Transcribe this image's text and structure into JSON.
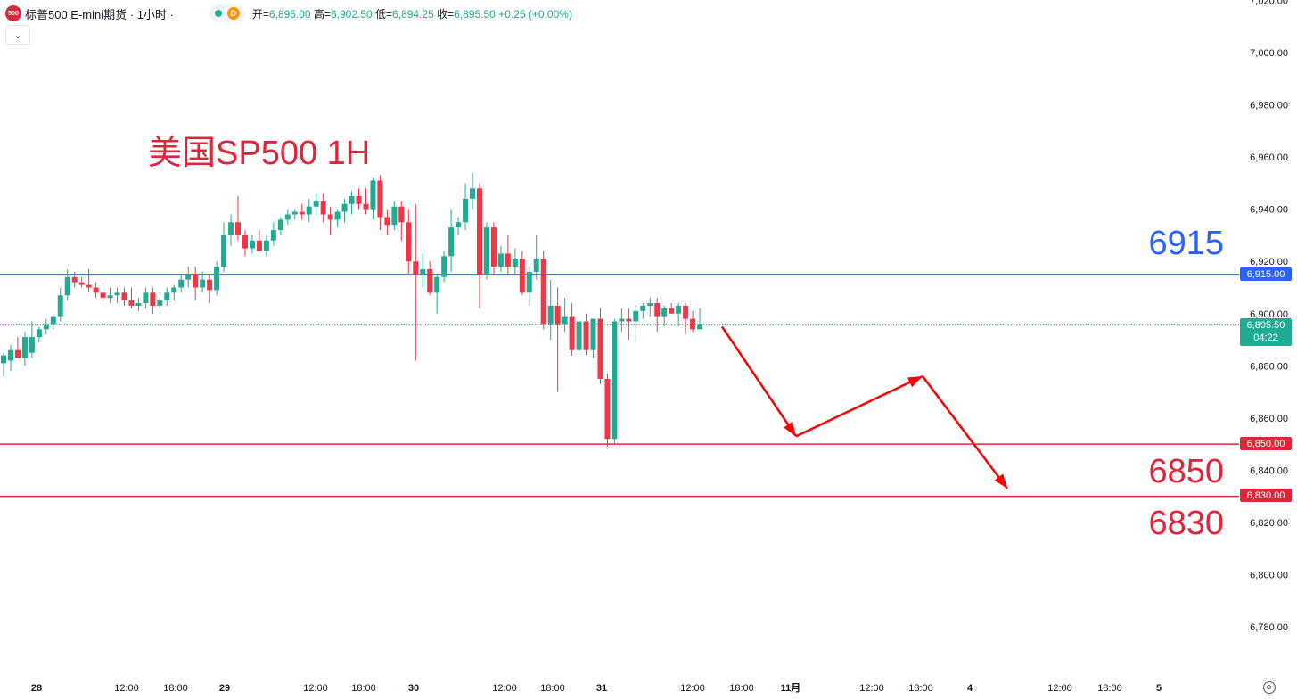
{
  "header": {
    "logo_text": "500",
    "symbol": "标普500 E-mini期货 · 1小时 ·",
    "badge": "D",
    "open_label": "开=",
    "open": "6,895.00",
    "high_label": "高=",
    "high": "6,902.50",
    "low_label": "低=",
    "low": "6,894.25",
    "close_label": "收=",
    "close": "6,895.50",
    "change": "+0.25 (+0.00%)",
    "collapse_icon": "chevron-down-icon"
  },
  "overlay": {
    "title": "美国SP500 1H",
    "label_6915": "6915",
    "label_6850": "6850",
    "label_6830": "6830"
  },
  "price_axis": {
    "ticks": [
      "7,020.00",
      "7,000.00",
      "6,980.00",
      "6,960.00",
      "6,940.00",
      "6,920.00",
      "6,900.00",
      "6,880.00",
      "6,860.00",
      "6,840.00",
      "6,820.00",
      "6,800.00",
      "6,780.00"
    ],
    "tag_6915": "6,915.00",
    "tag_6850": "6,850.00",
    "tag_6830": "6,830.00",
    "last_price": "6,895.50",
    "countdown": "04:22"
  },
  "time_axis": [
    "28",
    "12:00",
    "18:00",
    "29",
    "12:00",
    "18:00",
    "30",
    "12:00",
    "18:00",
    "31",
    "12:00",
    "18:00",
    "11月",
    "12:00",
    "18:00",
    "4",
    "12:00",
    "18:00",
    "5"
  ],
  "colors": {
    "up": "#22ab94",
    "down": "#f23645",
    "level_blue": "#2962ff",
    "level_red": "#e0253a",
    "arrow": "#ff0000"
  },
  "chart_data": {
    "type": "candlestick",
    "title": "美国SP500 1H",
    "ylim": [
      6770,
      7022
    ],
    "xlabels": [
      "28",
      "12:00",
      "18:00",
      "29",
      "12:00",
      "18:00",
      "30",
      "12:00",
      "18:00",
      "31",
      "12:00",
      "18:00",
      "11月",
      "12:00",
      "18:00",
      "4",
      "12:00",
      "18:00",
      "5"
    ],
    "candles": [
      [
        6881,
        6885,
        6876,
        6884
      ],
      [
        6882,
        6888,
        6878,
        6886
      ],
      [
        6886,
        6891,
        6883,
        6883
      ],
      [
        6883,
        6893,
        6880,
        6891
      ],
      [
        6885,
        6897,
        6883,
        6891
      ],
      [
        6891,
        6895,
        6889,
        6894
      ],
      [
        6894,
        6898,
        6892,
        6896
      ],
      [
        6896,
        6900,
        6894,
        6899
      ],
      [
        6899,
        6910,
        6897,
        6907
      ],
      [
        6907,
        6917,
        6905,
        6914
      ],
      [
        6914,
        6916,
        6910,
        6912
      ],
      [
        6912,
        6914,
        6910,
        6911
      ],
      [
        6911,
        6917,
        6908,
        6910
      ],
      [
        6910,
        6912,
        6906,
        6908
      ],
      [
        6908,
        6912,
        6905,
        6906
      ],
      [
        6906,
        6910,
        6904,
        6907
      ],
      [
        6907,
        6910,
        6904,
        6908
      ],
      [
        6908,
        6910,
        6903,
        6905
      ],
      [
        6905,
        6910,
        6902,
        6903
      ],
      [
        6903,
        6906,
        6901,
        6904
      ],
      [
        6904,
        6910,
        6902,
        6908
      ],
      [
        6908,
        6910,
        6900,
        6903
      ],
      [
        6903,
        6906,
        6902,
        6905
      ],
      [
        6905,
        6910,
        6903,
        6908
      ],
      [
        6908,
        6911,
        6905,
        6910
      ],
      [
        6910,
        6915,
        6908,
        6913
      ],
      [
        6913,
        6918,
        6910,
        6915
      ],
      [
        6915,
        6918,
        6905,
        6910
      ],
      [
        6910,
        6916,
        6908,
        6913
      ],
      [
        6913,
        6915,
        6904,
        6909
      ],
      [
        6909,
        6920,
        6907,
        6918
      ],
      [
        6918,
        6935,
        6916,
        6930
      ],
      [
        6930,
        6938,
        6926,
        6935
      ],
      [
        6935,
        6945,
        6928,
        6930
      ],
      [
        6930,
        6932,
        6922,
        6925
      ],
      [
        6925,
        6930,
        6923,
        6928
      ],
      [
        6928,
        6932,
        6925,
        6924
      ],
      [
        6924,
        6930,
        6922,
        6928
      ],
      [
        6928,
        6935,
        6926,
        6932
      ],
      [
        6932,
        6937,
        6930,
        6936
      ],
      [
        6936,
        6940,
        6934,
        6938
      ],
      [
        6938,
        6940,
        6936,
        6939
      ],
      [
        6939,
        6942,
        6936,
        6938
      ],
      [
        6938,
        6944,
        6935,
        6941
      ],
      [
        6941,
        6946,
        6938,
        6943
      ],
      [
        6943,
        6946,
        6935,
        6938
      ],
      [
        6938,
        6941,
        6930,
        6936
      ],
      [
        6936,
        6940,
        6933,
        6939
      ],
      [
        6939,
        6944,
        6935,
        6942
      ],
      [
        6942,
        6947,
        6938,
        6945
      ],
      [
        6945,
        6948,
        6940,
        6942
      ],
      [
        6942,
        6948,
        6938,
        6940
      ],
      [
        6940,
        6952,
        6936,
        6951
      ],
      [
        6951,
        6953,
        6932,
        6937
      ],
      [
        6937,
        6940,
        6930,
        6934
      ],
      [
        6934,
        6943,
        6932,
        6941
      ],
      [
        6941,
        6943,
        6928,
        6935
      ],
      [
        6935,
        6940,
        6915,
        6920
      ],
      [
        6920,
        6942,
        6882,
        6915
      ],
      [
        6915,
        6923,
        6910,
        6917
      ],
      [
        6917,
        6920,
        6907,
        6908
      ],
      [
        6908,
        6915,
        6900,
        6914
      ],
      [
        6914,
        6924,
        6912,
        6922
      ],
      [
        6922,
        6940,
        6916,
        6933
      ],
      [
        6933,
        6937,
        6930,
        6935
      ],
      [
        6935,
        6950,
        6932,
        6944
      ],
      [
        6944,
        6954,
        6940,
        6948
      ],
      [
        6948,
        6950,
        6902,
        6915
      ],
      [
        6915,
        6935,
        6913,
        6933
      ],
      [
        6933,
        6935,
        6915,
        6918
      ],
      [
        6918,
        6926,
        6916,
        6923
      ],
      [
        6923,
        6930,
        6915,
        6918
      ],
      [
        6918,
        6925,
        6915,
        6921
      ],
      [
        6921,
        6924,
        6907,
        6908
      ],
      [
        6908,
        6918,
        6903,
        6916
      ],
      [
        6916,
        6930,
        6913,
        6921
      ],
      [
        6921,
        6924,
        6894,
        6896
      ],
      [
        6896,
        6913,
        6890,
        6903
      ],
      [
        6903,
        6910,
        6870,
        6896
      ],
      [
        6896,
        6906,
        6893,
        6899
      ],
      [
        6899,
        6904,
        6884,
        6886
      ],
      [
        6886,
        6897,
        6884,
        6897
      ],
      [
        6897,
        6900,
        6884,
        6886
      ],
      [
        6886,
        6898,
        6883,
        6898
      ],
      [
        6898,
        6902,
        6873,
        6875
      ],
      [
        6875,
        6877,
        6849,
        6852
      ],
      [
        6852,
        6898,
        6850,
        6897
      ],
      [
        6897,
        6902,
        6893,
        6898
      ],
      [
        6898,
        6902,
        6890,
        6897
      ],
      [
        6897,
        6903,
        6889,
        6901
      ],
      [
        6901,
        6904,
        6898,
        6903
      ],
      [
        6903,
        6906,
        6899,
        6904
      ],
      [
        6904,
        6906,
        6893,
        6899
      ],
      [
        6899,
        6903,
        6895,
        6902
      ],
      [
        6902,
        6904,
        6900,
        6900
      ],
      [
        6900,
        6904,
        6895,
        6903
      ],
      [
        6903,
        6904,
        6892,
        6898
      ],
      [
        6898,
        6901,
        6893,
        6894
      ],
      [
        6894,
        6902,
        6894,
        6896
      ]
    ],
    "levels": [
      6915,
      6850,
      6830
    ],
    "forecast_path": [
      {
        "x": "31 12:00",
        "y": 6895
      },
      {
        "x": "31 18:00",
        "y": 6853
      },
      {
        "x": "11月 00:00",
        "y": 6876
      },
      {
        "x": "11月 06:00",
        "y": 6833
      }
    ]
  }
}
